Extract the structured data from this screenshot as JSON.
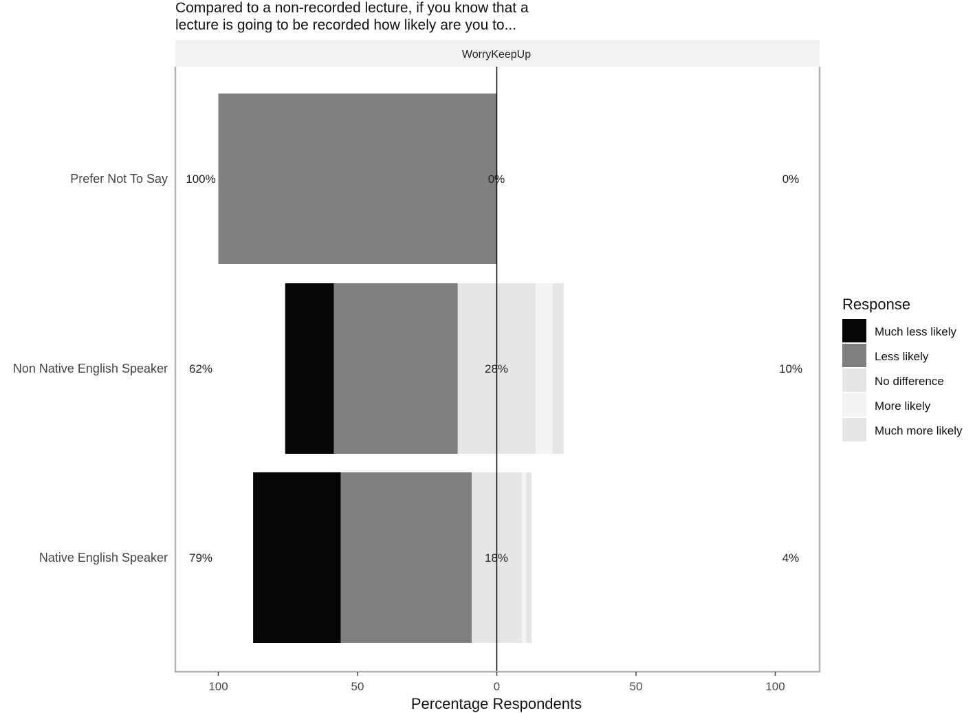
{
  "chart_data": {
    "type": "bar",
    "orientation": "horizontal",
    "stacking": "diverging",
    "title": "Compared to a non-recorded lecture, if you know that a lecture is going to be recorded how likely are you to...",
    "title_lines": [
      "Compared to a non-recorded lecture, if you know that a",
      "lecture is going to be recorded how likely are you to..."
    ],
    "facet": "WorryKeepUp",
    "xlabel": "Percentage Respondents",
    "xlim": [
      -100,
      100
    ],
    "xticks": [
      -100,
      -50,
      0,
      50,
      100
    ],
    "xtick_labels": [
      "100",
      "50",
      "0",
      "50",
      "100"
    ],
    "categories": [
      "Prefer Not To Say",
      "Non Native English Speaker",
      "Native English Speaker"
    ],
    "legend_title": "Response",
    "legend_position": "right",
    "grid": false,
    "series": [
      {
        "name": "Much less likely",
        "color": "#050607",
        "values": [
          0,
          17.5,
          31.5
        ]
      },
      {
        "name": "Less likely",
        "color": "#7f807f",
        "values": [
          100,
          44.5,
          47
        ]
      },
      {
        "name": "No difference",
        "color": "#e6e6e6",
        "values": [
          0,
          28,
          18
        ]
      },
      {
        "name": "More likely",
        "color": "#f3f3f4",
        "values": [
          0,
          6,
          1.5
        ]
      },
      {
        "name": "Much more likely",
        "color": "#e6e6e6",
        "values": [
          0,
          4,
          2
        ]
      }
    ],
    "summary_labels": [
      {
        "left": "100%",
        "center": "0%",
        "right": "0%"
      },
      {
        "left": "62%",
        "center": "28%",
        "right": "10%"
      },
      {
        "left": "79%",
        "center": "18%",
        "right": "4%"
      }
    ]
  }
}
